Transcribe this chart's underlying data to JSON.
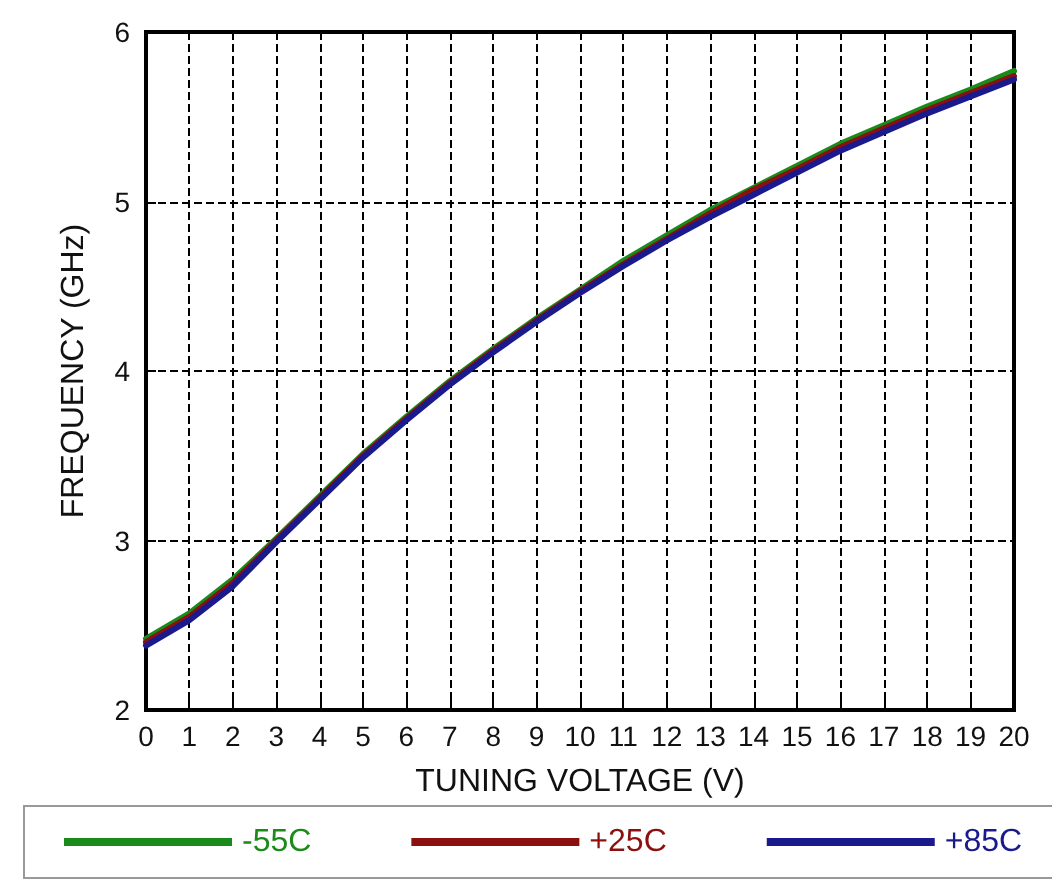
{
  "chart_data": {
    "type": "line",
    "xlabel": "TUNING VOLTAGE (V)",
    "ylabel": "FREQUENCY (GHz)",
    "x": [
      0,
      1,
      2,
      3,
      4,
      5,
      6,
      7,
      8,
      9,
      10,
      11,
      12,
      13,
      14,
      15,
      16,
      17,
      18,
      19,
      20
    ],
    "series": [
      {
        "name": "-55C",
        "color": "#1a8a1a",
        "values": [
          2.42,
          2.57,
          2.77,
          3.01,
          3.26,
          3.51,
          3.73,
          3.94,
          4.13,
          4.31,
          4.48,
          4.65,
          4.8,
          4.95,
          5.08,
          5.21,
          5.34,
          5.45,
          5.56,
          5.66,
          5.77
        ]
      },
      {
        "name": "+25C",
        "color": "#8b1010",
        "values": [
          2.4,
          2.55,
          2.75,
          3.0,
          3.25,
          3.5,
          3.72,
          3.93,
          4.12,
          4.3,
          4.47,
          4.63,
          4.78,
          4.93,
          5.07,
          5.19,
          5.32,
          5.43,
          5.54,
          5.64,
          5.74
        ]
      },
      {
        "name": "+85C",
        "color": "#1a1a8c",
        "values": [
          2.38,
          2.53,
          2.73,
          2.99,
          3.24,
          3.49,
          3.71,
          3.92,
          4.11,
          4.29,
          4.46,
          4.62,
          4.77,
          4.91,
          5.04,
          5.17,
          5.3,
          5.41,
          5.52,
          5.62,
          5.72
        ]
      }
    ],
    "xlim": [
      0,
      20
    ],
    "xticks": [
      0,
      1,
      2,
      3,
      4,
      5,
      6,
      7,
      8,
      9,
      10,
      11,
      12,
      13,
      14,
      15,
      16,
      17,
      18,
      19,
      20
    ],
    "ylim": [
      2,
      6
    ],
    "yticks": [
      2,
      3,
      4,
      5,
      6
    ],
    "grid": true,
    "legend": "bottom",
    "marker": "none",
    "line_style": "solid"
  }
}
